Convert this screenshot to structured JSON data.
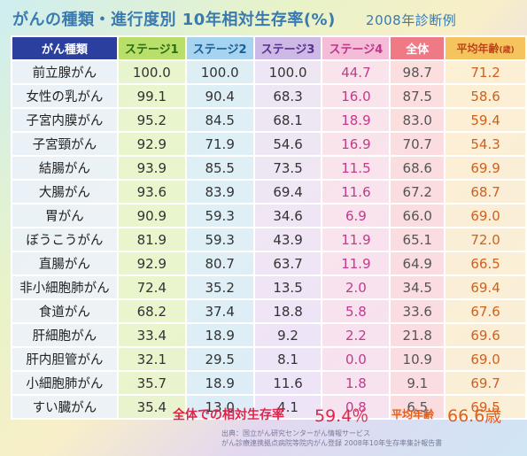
{
  "header": {
    "title": "がんの種類・進行度別 10年相対生存率(%)",
    "year": "2008年診断例"
  },
  "columns": {
    "name": "がん種類",
    "s1": "ステージ1",
    "s2": "ステージ2",
    "s3": "ステージ3",
    "s4": "ステージ4",
    "total": "全体",
    "age": "平均年齢",
    "age_unit": "(歳)"
  },
  "colors": {
    "title": "#3a7ab0",
    "stage1": "#b7df6a",
    "stage2": "#a6d3ef",
    "stage3": "#cdb9e6",
    "stage4": "#f4bcd6",
    "total": "#ef7a86",
    "age": "#f6c45e"
  },
  "chart_data": {
    "type": "table",
    "title": "がんの種類・進行度別 10年相対生存率(%)",
    "subtitle": "2008年診断例",
    "headers": [
      "がん種類",
      "ステージ1",
      "ステージ2",
      "ステージ3",
      "ステージ4",
      "全体",
      "平均年齢(歳)"
    ],
    "rows": [
      [
        "前立腺がん",
        "100.0",
        "100.0",
        "100.0",
        "44.7",
        "98.7",
        "71.2"
      ],
      [
        "女性の乳がん",
        "99.1",
        "90.4",
        "68.3",
        "16.0",
        "87.5",
        "58.6"
      ],
      [
        "子宮内膜がん",
        "95.2",
        "84.5",
        "68.1",
        "18.9",
        "83.0",
        "59.4"
      ],
      [
        "子宮頸がん",
        "92.9",
        "71.9",
        "54.6",
        "16.9",
        "70.7",
        "54.3"
      ],
      [
        "結腸がん",
        "93.9",
        "85.5",
        "73.5",
        "11.5",
        "68.6",
        "69.9"
      ],
      [
        "大腸がん",
        "93.6",
        "83.9",
        "69.4",
        "11.6",
        "67.2",
        "68.7"
      ],
      [
        "胃がん",
        "90.9",
        "59.3",
        "34.6",
        "6.9",
        "66.0",
        "69.0"
      ],
      [
        "ぼうこうがん",
        "81.9",
        "59.3",
        "43.9",
        "11.9",
        "65.1",
        "72.0"
      ],
      [
        "直腸がん",
        "92.9",
        "80.7",
        "63.7",
        "11.9",
        "64.9",
        "66.5"
      ],
      [
        "非小細胞肺がん",
        "72.4",
        "35.2",
        "13.5",
        "2.0",
        "34.5",
        "69.4"
      ],
      [
        "食道がん",
        "68.2",
        "37.4",
        "18.8",
        "5.8",
        "33.6",
        "67.6"
      ],
      [
        "肝細胞がん",
        "33.4",
        "18.9",
        "9.2",
        "2.2",
        "21.8",
        "69.6"
      ],
      [
        "肝内胆管がん",
        "32.1",
        "29.5",
        "8.1",
        "0.0",
        "10.9",
        "69.0"
      ],
      [
        "小細胞肺がん",
        "35.7",
        "18.9",
        "11.6",
        "1.8",
        "9.1",
        "69.7"
      ],
      [
        "すい臓がん",
        "35.4",
        "13.0",
        "4.1",
        "0.8",
        "6.5",
        "69.5"
      ]
    ]
  },
  "summary": {
    "label": "全体での相対生存率",
    "value": "59.4％",
    "age_label": "平均年齢",
    "age_value": "66.6歳"
  },
  "source": {
    "line1": "出典：国立がん研究センターがん情報サービス",
    "line2": "がん診療連携拠点病院等院内がん登録 2008年10年生存率集計報告書"
  }
}
